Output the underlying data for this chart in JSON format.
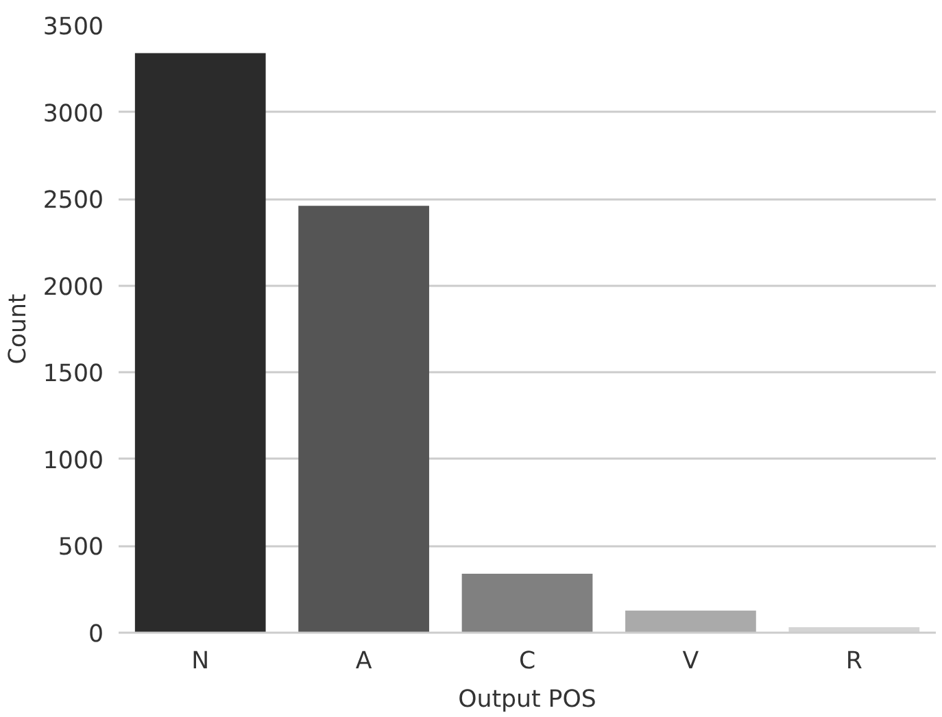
{
  "chart_data": {
    "type": "bar",
    "xlabel": "Output POS",
    "ylabel": "Count",
    "categories": [
      "N",
      "A",
      "C",
      "V",
      "R"
    ],
    "values": [
      3340,
      2460,
      340,
      127,
      32
    ],
    "colors": [
      "#2b2b2b",
      "#555555",
      "#808080",
      "#aaaaaa",
      "#d4d4d4"
    ],
    "ylim": [
      0,
      3500
    ],
    "yticks": [
      0,
      500,
      1000,
      1500,
      2000,
      2500,
      3000,
      3500
    ],
    "grid": "y"
  }
}
